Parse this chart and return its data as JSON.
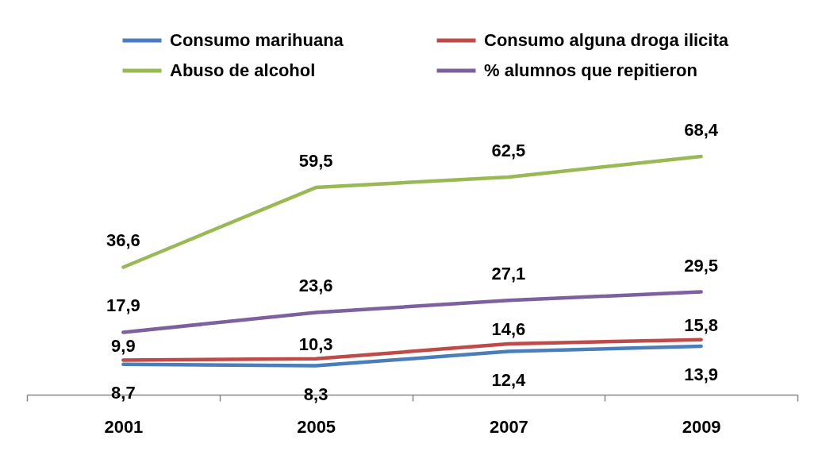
{
  "chart_data": {
    "type": "line",
    "categories": [
      "2001",
      "2005",
      "2007",
      "2009"
    ],
    "series": [
      {
        "name": "Consumo marihuana",
        "color": "#4a7ebb",
        "values": [
          8.7,
          8.3,
          12.4,
          13.9
        ],
        "value_labels": [
          "8,7",
          "8,3",
          "12,4",
          "13,9"
        ]
      },
      {
        "name": "Consumo alguna droga ilicita",
        "color": "#be4b48",
        "values": [
          9.9,
          10.3,
          14.6,
          15.8
        ],
        "value_labels": [
          "9,9",
          "10,3",
          "14,6",
          "15,8"
        ]
      },
      {
        "name": "Abuso de alcohol",
        "color": "#98b954",
        "values": [
          36.6,
          59.5,
          62.5,
          68.4
        ],
        "value_labels": [
          "36,6",
          "59,5",
          "62,5",
          "68,4"
        ]
      },
      {
        "name": "% alumnos que repitieron",
        "color": "#7d60a0",
        "values": [
          17.9,
          23.6,
          27.1,
          29.5
        ],
        "value_labels": [
          "17,9",
          "23,6",
          "27,1",
          "29,5"
        ]
      }
    ],
    "legend": "top",
    "tick_labels": "x"
  }
}
